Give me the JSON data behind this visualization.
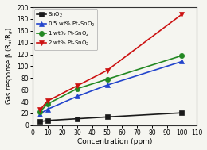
{
  "x": [
    5,
    10,
    30,
    50,
    100
  ],
  "series": [
    {
      "label": "SnO$_2$",
      "color": "#1a1a1a",
      "marker": "s",
      "markersize": 4,
      "values": [
        6,
        8,
        11,
        14,
        21
      ]
    },
    {
      "label": "0.5 wt% Pt-SnO$_2$",
      "color": "#2244cc",
      "marker": "^",
      "markersize": 5,
      "values": [
        19,
        27,
        49,
        68,
        108
      ]
    },
    {
      "label": "1 wt% Pt-SnO$_2$",
      "color": "#228822",
      "marker": "o",
      "markersize": 4.5,
      "values": [
        23,
        36,
        62,
        78,
        118
      ]
    },
    {
      "label": "2 wt% Pt-SnO$_2$",
      "color": "#cc1111",
      "marker": "v",
      "markersize": 5,
      "values": [
        26,
        41,
        67,
        93,
        188
      ]
    }
  ],
  "xlabel": "Concentration (ppm)",
  "ylabel": "Gas response β (R$_a$/R$_g$)",
  "xlim": [
    0,
    110
  ],
  "ylim": [
    0,
    200
  ],
  "xticks": [
    0,
    10,
    20,
    30,
    40,
    50,
    60,
    70,
    80,
    90,
    100,
    110
  ],
  "yticks": [
    0,
    20,
    40,
    60,
    80,
    100,
    120,
    140,
    160,
    180,
    200
  ],
  "background_color": "#f5f5f0",
  "linewidth": 1.2
}
